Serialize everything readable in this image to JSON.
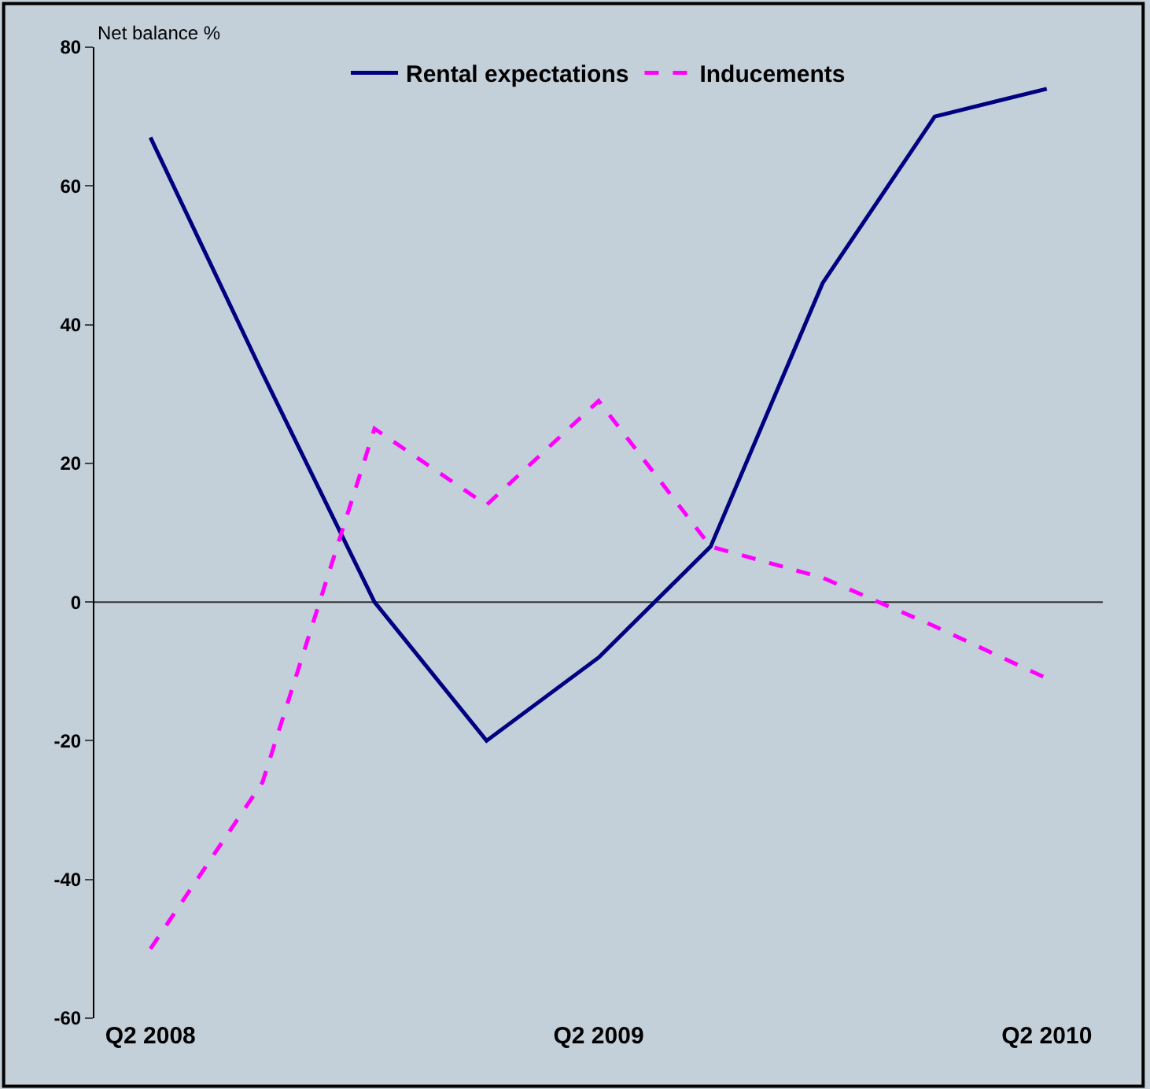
{
  "chart_data": {
    "type": "line",
    "ylabel": "Net balance %",
    "categories": [
      "Q2 2008",
      null,
      null,
      null,
      "Q2 2009",
      null,
      null,
      null,
      "Q2 2010"
    ],
    "series": [
      {
        "name": "Rental expectations",
        "color": "#000080",
        "line_style": "solid",
        "values": [
          67,
          33,
          0,
          -20,
          -8,
          8,
          46,
          70,
          74
        ]
      },
      {
        "name": "Inducements",
        "color": "#ff00ff",
        "line_style": "dashed",
        "values": [
          -50,
          -26,
          25,
          14,
          29,
          8,
          3.5,
          -3.5,
          -11
        ]
      }
    ],
    "ylim": [
      -60,
      80
    ],
    "yticks": [
      -60,
      -40,
      -20,
      0,
      20,
      40,
      60,
      80
    ],
    "ref_lines": [
      {
        "axis": "y",
        "value": 0,
        "color": "#333333",
        "line_style": "solid"
      }
    ],
    "grid": false,
    "legend": "top",
    "marker": "none"
  }
}
